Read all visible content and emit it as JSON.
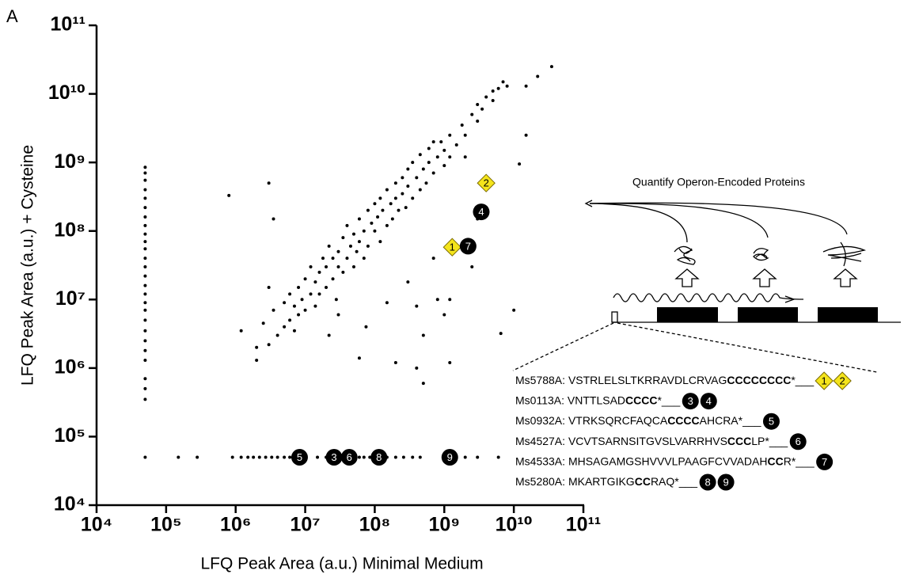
{
  "panel_label": "A",
  "chart_data": {
    "type": "scatter",
    "x_label": "LFQ Peak Area (a.u.)  Minimal Medium",
    "y_label": "LFQ Peak Area (a.u.)  + Cysteine",
    "log_x": true,
    "log_y": true,
    "xlim": [
      10000.0,
      100000000000.0
    ],
    "ylim": [
      10000.0,
      100000000000.0
    ],
    "xticks": [
      {
        "value": 10000.0,
        "label": "10⁴"
      },
      {
        "value": 100000.0,
        "label": "10⁵"
      },
      {
        "value": 1000000.0,
        "label": "10⁶"
      },
      {
        "value": 10000000.0,
        "label": "10⁷"
      },
      {
        "value": 100000000.0,
        "label": "10⁸"
      },
      {
        "value": 1000000000.0,
        "label": "10⁹"
      },
      {
        "value": 10000000000.0,
        "label": "10¹⁰"
      },
      {
        "value": 100000000000.0,
        "label": "10¹¹"
      }
    ],
    "yticks": [
      {
        "value": 10000.0,
        "label": "10⁴"
      },
      {
        "value": 100000.0,
        "label": "10⁵"
      },
      {
        "value": 1000000.0,
        "label": "10⁶"
      },
      {
        "value": 10000000.0,
        "label": "10⁷"
      },
      {
        "value": 100000000.0,
        "label": "10⁸"
      },
      {
        "value": 1000000000.0,
        "label": "10⁹"
      },
      {
        "value": 10000000000.0,
        "label": "10¹⁰"
      },
      {
        "value": 100000000000.0,
        "label": "10¹¹"
      }
    ],
    "color": "#000000",
    "x": [
      50000.0,
      50000.0,
      50000.0,
      50000.0,
      50000.0,
      50000.0,
      50000.0,
      50000.0,
      50000.0,
      50000.0,
      50000.0,
      50000.0,
      50000.0,
      50000.0,
      50000.0,
      50000.0,
      50000.0,
      50000.0,
      50000.0,
      50000.0,
      50000.0,
      50000.0,
      50000.0,
      50000.0,
      50000.0,
      50000.0,
      50000.0,
      150000.0,
      280000.0,
      900000.0,
      1200000.0,
      1500000.0,
      1800000.0,
      2200000.0,
      2700000.0,
      3300000.0,
      4000000.0,
      5000000.0,
      6000000.0,
      10000000.0,
      15000000.0,
      20000000.0,
      35000000.0,
      50000000.0,
      60000000.0,
      70000000.0,
      85000000.0,
      150000000.0,
      200000000.0,
      260000000.0,
      350000000.0,
      450000000.0,
      2000000000.0,
      3000000000.0,
      6000000000.0,
      2000000.0,
      3000000.0,
      3500000.0,
      4000000.0,
      5000000.0,
      5000000.0,
      6000000.0,
      6000000.0,
      7000000.0,
      7000000.0,
      8000000.0,
      8000000.0,
      9000000.0,
      10000000.0,
      10000000.0,
      12000000.0,
      12000000.0,
      14000000.0,
      14000000.0,
      16000000.0,
      16000000.0,
      18000000.0,
      20000000.0,
      20000000.0,
      22000000.0,
      25000000.0,
      25000000.0,
      28000000.0,
      30000000.0,
      30000000.0,
      35000000.0,
      35000000.0,
      40000000.0,
      40000000.0,
      45000000.0,
      50000000.0,
      50000000.0,
      55000000.0,
      60000000.0,
      60000000.0,
      70000000.0,
      70000000.0,
      80000000.0,
      80000000.0,
      90000000.0,
      100000000.0,
      100000000.0,
      110000000.0,
      120000000.0,
      120000000.0,
      130000000.0,
      150000000.0,
      150000000.0,
      170000000.0,
      180000000.0,
      200000000.0,
      200000000.0,
      220000000.0,
      250000000.0,
      250000000.0,
      280000000.0,
      300000000.0,
      300000000.0,
      350000000.0,
      350000000.0,
      400000000.0,
      450000000.0,
      450000000.0,
      500000000.0,
      550000000.0,
      600000000.0,
      600000000.0,
      700000000.0,
      700000000.0,
      800000000.0,
      900000000.0,
      1000000000.0,
      1000000000.0,
      1200000000.0,
      1200000000.0,
      1500000000.0,
      1800000000.0,
      2000000000.0,
      2500000000.0,
      3000000000.0,
      3000000000.0,
      3500000000.0,
      4000000000.0,
      5000000000.0,
      5000000000.0,
      6000000000.0,
      7000000000.0,
      8000000000.0,
      2000000000.0,
      3000000.0,
      2500000.0,
      3000000.0,
      800000.0,
      3500000.0,
      1200000.0,
      2000000.0,
      12000000000.0,
      35000000000.0,
      22000000000.0,
      15000000000.0,
      15000000000.0,
      6500000000.0,
      10000000000.0,
      500000000.0,
      400000000.0,
      200000000.0,
      60000000.0,
      1200000000.0,
      500000000.0,
      30000000.0,
      75000000.0,
      22000000.0,
      150000000.0,
      300000000.0,
      700000000.0,
      1000000000.0,
      1200000000.0,
      2500000000.0,
      400000000.0,
      3000000000.0,
      800000000.0
    ],
    "y": [
      850000000.0,
      700000000.0,
      550000000.0,
      400000000.0,
      300000000.0,
      220000000.0,
      160000000.0,
      120000000.0,
      90000000.0,
      70000000.0,
      55000000.0,
      40000000.0,
      30000000.0,
      22000000.0,
      16000000.0,
      12000000.0,
      9000000.0,
      7000000.0,
      5000000.0,
      3500000.0,
      2500000.0,
      1800000.0,
      1300000.0,
      700000.0,
      500000.0,
      350000.0,
      50000.0,
      50000.0,
      50000.0,
      50000.0,
      50000.0,
      50000.0,
      50000.0,
      50000.0,
      50000.0,
      50000.0,
      50000.0,
      50000.0,
      50000.0,
      50000.0,
      50000.0,
      50000.0,
      50000.0,
      50000.0,
      50000.0,
      50000.0,
      50000.0,
      50000.0,
      50000.0,
      50000.0,
      50000.0,
      50000.0,
      50000.0,
      50000.0,
      50000.0,
      2000000.0,
      2200000.0,
      7000000.0,
      3000000.0,
      4000000.0,
      9000000.0,
      5000000.0,
      12000000.0,
      3500000.0,
      8000000.0,
      6000000.0,
      15000000.0,
      10000000.0,
      20000000.0,
      7000000.0,
      12000000.0,
      30000000.0,
      8000000.0,
      18000000.0,
      25000000.0,
      12000000.0,
      40000000.0,
      15000000.0,
      30000000.0,
      60000000.0,
      20000000.0,
      40000000.0,
      10000000.0,
      30000000.0,
      50000000.0,
      80000000.0,
      25000000.0,
      40000000.0,
      120000000.0,
      60000000.0,
      30000000.0,
      90000000.0,
      50000000.0,
      150000000.0,
      70000000.0,
      40000000.0,
      100000000.0,
      200000000.0,
      60000000.0,
      130000000.0,
      100000000.0,
      250000000.0,
      160000000.0,
      70000000.0,
      300000000.0,
      200000000.0,
      120000000.0,
      400000000.0,
      250000000.0,
      150000000.0,
      500000000.0,
      300000000.0,
      200000000.0,
      600000000.0,
      350000000.0,
      220000000.0,
      800000000.0,
      450000000.0,
      300000000.0,
      1000000000.0,
      600000000.0,
      400000000.0,
      1300000000.0,
      800000000.0,
      500000000.0,
      1600000000.0,
      1000000000.0,
      700000000.0,
      2000000000.0,
      1200000000.0,
      2000000000.0,
      900000000.0,
      1500000000.0,
      2500000000.0,
      1200000000.0,
      1800000000.0,
      3500000000.0,
      2500000000.0,
      5000000000.0,
      4000000000.0,
      7000000000.0,
      6000000000.0,
      9000000000.0,
      8000000000.0,
      11000000000.0,
      12000000000.0,
      15000000000.0,
      13000000000.0,
      1200000000.0,
      15000000.0,
      4500000.0,
      500000000.0,
      330000000.0,
      150000000.0,
      3500000.0,
      1300000.0,
      950000000.0,
      25000000000.0,
      18000000000.0,
      2500000000.0,
      13000000000.0,
      3200000.0,
      7000000.0,
      600000.0,
      1000000.0,
      1200000.0,
      1400000.0,
      1200000.0,
      3000000.0,
      6000000.0,
      4000000.0,
      3000000.0,
      9000000.0,
      18000000.0,
      40000000.0,
      6000000.0,
      10000000.0,
      30000000.0,
      8000000.0,
      150000000.0,
      10000000.0
    ],
    "annotation_colors": {
      "diamond": "#f4e41c",
      "circle": "#000000"
    },
    "annotations": [
      {
        "text": "2",
        "x": 4000000000.0,
        "y": 500000000.0,
        "marker": "diamond"
      },
      {
        "text": "4",
        "x": 3400000000.0,
        "y": 190000000.0,
        "marker": "circle"
      },
      {
        "text": "1",
        "x": 1300000000.0,
        "y": 58000000.0,
        "marker": "diamond"
      },
      {
        "text": "7",
        "x": 2200000000.0,
        "y": 60000000.0,
        "marker": "circle"
      },
      {
        "text": "5",
        "x": 8300000.0,
        "y": 50000.0,
        "marker": "circle"
      },
      {
        "text": "3",
        "x": 26000000.0,
        "y": 50000.0,
        "marker": "circle"
      },
      {
        "text": "6",
        "x": 43000000.0,
        "y": 50000.0,
        "marker": "circle"
      },
      {
        "text": "8",
        "x": 115000000.0,
        "y": 50000.0,
        "marker": "circle"
      },
      {
        "text": "9",
        "x": 1200000000.0,
        "y": 50000.0,
        "marker": "circle"
      }
    ]
  },
  "operon_panel": {
    "title": "Quantify Operon-Encoded Proteins",
    "sequences": [
      {
        "id": "Ms5788A:",
        "parts": [
          {
            "text": "VSTRLELSLTKRRAVDLCRVAG",
            "bold": false
          },
          {
            "text": "CCCCCCCC",
            "bold": true
          },
          {
            "text": "*___",
            "bold": false
          }
        ],
        "badges": [
          {
            "text": "1",
            "marker": "diamond"
          },
          {
            "text": "2",
            "marker": "diamond"
          }
        ]
      },
      {
        "id": "Ms0113A:",
        "parts": [
          {
            "text": "VNTTLSAD",
            "bold": false
          },
          {
            "text": "CCCC",
            "bold": true
          },
          {
            "text": "*___",
            "bold": false
          }
        ],
        "badges": [
          {
            "text": "3",
            "marker": "circle"
          },
          {
            "text": "4",
            "marker": "circle"
          }
        ]
      },
      {
        "id": "Ms0932A:",
        "parts": [
          {
            "text": "VTRKSQRCFAQCA",
            "bold": false
          },
          {
            "text": "CCCC",
            "bold": true
          },
          {
            "text": "AHCRA*___",
            "bold": false
          }
        ],
        "badges": [
          {
            "text": "5",
            "marker": "circle"
          }
        ]
      },
      {
        "id": "Ms4527A:",
        "parts": [
          {
            "text": "VCVTSARNSITGVSLVARRHVS",
            "bold": false
          },
          {
            "text": "CCC",
            "bold": true
          },
          {
            "text": "LP*___",
            "bold": false
          }
        ],
        "badges": [
          {
            "text": "6",
            "marker": "circle"
          }
        ]
      },
      {
        "id": "Ms4533A:",
        "parts": [
          {
            "text": "MHSAGAMGSHVVVLPAAGFCVVADAH",
            "bold": false
          },
          {
            "text": "CC",
            "bold": true
          },
          {
            "text": "R*___",
            "bold": false
          }
        ],
        "badges": [
          {
            "text": "7",
            "marker": "circle"
          }
        ]
      },
      {
        "id": "Ms5280A:",
        "parts": [
          {
            "text": "MKARTGIKG",
            "bold": false
          },
          {
            "text": "CC",
            "bold": true
          },
          {
            "text": "RAQ*___",
            "bold": false
          }
        ],
        "badges": [
          {
            "text": "8",
            "marker": "circle"
          },
          {
            "text": "9",
            "marker": "circle"
          }
        ]
      }
    ]
  }
}
